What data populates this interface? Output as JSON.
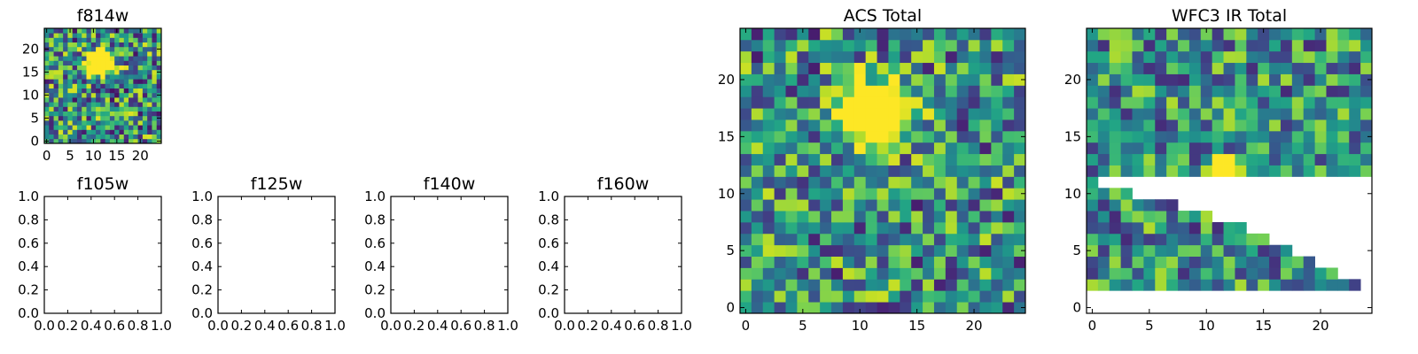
{
  "chart_data": [
    {
      "type": "heatmap",
      "title": "f814w",
      "grid_size": 25,
      "blob": {
        "center": [
          11.5,
          17.0
        ],
        "sigma": 1.7,
        "amplitude": 1.7
      },
      "noise": 0.45,
      "masked": "none",
      "xticks": [
        "0",
        "5",
        "10",
        "15",
        "20"
      ],
      "yticks": [
        "0",
        "5",
        "10",
        "15",
        "20"
      ],
      "xlim": [
        -0.5,
        24.5
      ],
      "ylim": [
        -0.5,
        24.5
      ],
      "colormap": "viridis"
    },
    {
      "type": "empty",
      "title": "f105w",
      "xticks": [
        "0.0",
        "0.2",
        "0.4",
        "0.6",
        "0.8",
        "1.0"
      ],
      "yticks": [
        "0.0",
        "0.2",
        "0.4",
        "0.6",
        "0.8",
        "1.0"
      ],
      "xlim": [
        0,
        1
      ],
      "ylim": [
        0,
        1
      ]
    },
    {
      "type": "empty",
      "title": "f125w",
      "xticks": [
        "0.0",
        "0.2",
        "0.4",
        "0.6",
        "0.8",
        "1.0"
      ],
      "yticks": [
        "0.0",
        "0.2",
        "0.4",
        "0.6",
        "0.8",
        "1.0"
      ],
      "xlim": [
        0,
        1
      ],
      "ylim": [
        0,
        1
      ]
    },
    {
      "type": "empty",
      "title": "f140w",
      "xticks": [
        "0.0",
        "0.2",
        "0.4",
        "0.6",
        "0.8",
        "1.0"
      ],
      "yticks": [
        "0.0",
        "0.2",
        "0.4",
        "0.6",
        "0.8",
        "1.0"
      ],
      "xlim": [
        0,
        1
      ],
      "ylim": [
        0,
        1
      ]
    },
    {
      "type": "empty",
      "title": "f160w",
      "xticks": [
        "0.0",
        "0.2",
        "0.4",
        "0.6",
        "0.8",
        "1.0"
      ],
      "yticks": [
        "0.0",
        "0.2",
        "0.4",
        "0.6",
        "0.8",
        "1.0"
      ],
      "xlim": [
        0,
        1
      ],
      "ylim": [
        0,
        1
      ]
    },
    {
      "type": "heatmap",
      "title": "ACS Total",
      "grid_size": 25,
      "blob": {
        "center": [
          11.5,
          17.0
        ],
        "sigma": 1.8,
        "amplitude": 1.8
      },
      "noise": 0.42,
      "masked": "none",
      "xticks": [
        "0",
        "5",
        "10",
        "15",
        "20"
      ],
      "yticks": [
        "0",
        "5",
        "10",
        "15",
        "20"
      ],
      "xlim": [
        -0.5,
        24.5
      ],
      "ylim": [
        -0.5,
        24.5
      ],
      "colormap": "viridis"
    },
    {
      "type": "heatmap",
      "title": "WFC3 IR Total",
      "grid_size": 25,
      "blob": {
        "center": [
          11.8,
          11.6
        ],
        "sigma": 1.0,
        "amplitude": 1.3
      },
      "noise": 0.38,
      "masked": "lower-right staircase",
      "mask_rows": {
        "11": 1,
        "10": 4,
        "9": 8,
        "8": 11,
        "7": 14,
        "6": 16,
        "5": 18,
        "4": 20,
        "3": 22,
        "2": 24
      },
      "xticks": [
        "0",
        "5",
        "10",
        "15",
        "20"
      ],
      "yticks": [
        "0",
        "5",
        "10",
        "15",
        "20"
      ],
      "xlim": [
        -0.5,
        24.5
      ],
      "ylim": [
        -0.5,
        24.5
      ],
      "colormap": "viridis"
    }
  ]
}
